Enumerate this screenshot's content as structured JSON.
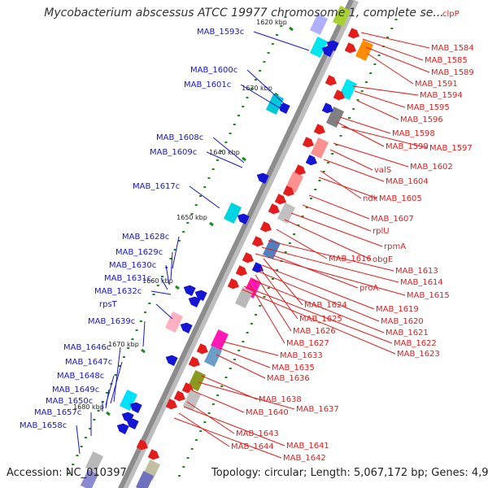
{
  "title": "Mycobacterium abscessus ATCC 19977 chromosome 1, complete se...",
  "footer": {
    "accession": "Accession: NC_010397",
    "info": "Topology: circular; Length: 5,067,172 bp; Genes: 4,970"
  },
  "colors": {
    "forward_label": "#1515d4",
    "reverse_label": "#e31c1c",
    "backbone": "#8c8c8c",
    "tick": "#1a8a1a"
  },
  "scale_labels": [
    "1620 kbp",
    "1630 kbp",
    "1640 kbp",
    "1650 kbp",
    "1660 kbp",
    "1670 kbp",
    "1680 kbp"
  ],
  "left_labels": [
    "MAB_1593c",
    "MAB_1600c",
    "MAB_1601c",
    "MAB_1608c",
    "MAB_1609c",
    "MAB_1617c",
    "MAB_1628c",
    "MAB_1629c",
    "MAB_1630c",
    "MAB_1631c",
    "MAB_1632c",
    "rpsT",
    "MAB_1639c",
    "MAB_1646c",
    "MAB_1647c",
    "MAB_1648c",
    "MAB_1649c",
    "MAB_1650c",
    "MAB_1657c",
    "MAB_1658c"
  ],
  "right_labels": [
    "clpP",
    "MAB_1584",
    "MAB_1585",
    "MAB_1589",
    "MAB_1591",
    "MAB_1594",
    "MAB_1595",
    "MAB_1596",
    "MAB_1598",
    "MAB_1599",
    "MAB_1597",
    "MAB_1602",
    "valS",
    "MAB_1604",
    "ndk",
    "MAB_1605",
    "MAB_1607",
    "rplU",
    "rpmA",
    "obgE",
    "MAB_1616",
    "MAB_1613",
    "MAB_1614",
    "MAB_1615",
    "proA",
    "MAB_1624",
    "MAB_1619",
    "MAB_1625",
    "MAB_1620",
    "MAB_1626",
    "MAB_1621",
    "MAB_1627",
    "MAB_1622",
    "MAB_1623",
    "MAB_1633",
    "MAB_1635",
    "MAB_1636",
    "MAB_1638",
    "MAB_1637",
    "MAB_1640",
    "MAB_1643",
    "MAB_1641",
    "MAB_1644",
    "MAB_1642"
  ]
}
